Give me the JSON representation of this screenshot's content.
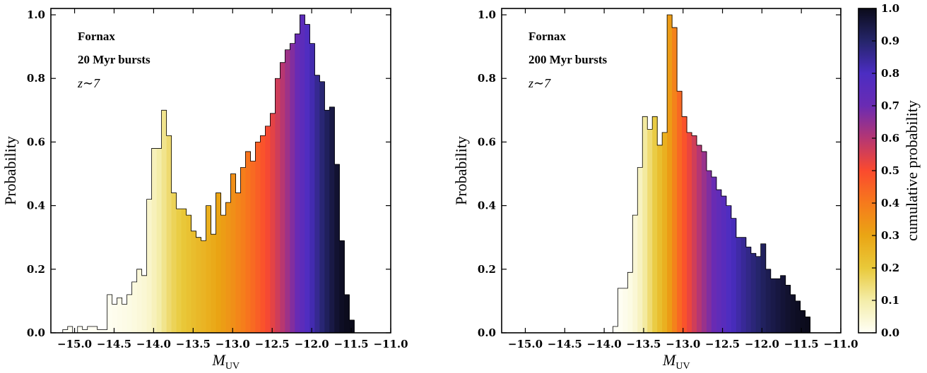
{
  "colormap": {
    "name": "cumulative-probability",
    "stops": [
      {
        "v": 0.0,
        "c": "#fffff6"
      },
      {
        "v": 0.1,
        "c": "#f4eda9"
      },
      {
        "v": 0.2,
        "c": "#e9c93a"
      },
      {
        "v": 0.3,
        "c": "#eaa514"
      },
      {
        "v": 0.4,
        "c": "#f67a1c"
      },
      {
        "v": 0.5,
        "c": "#fb4a2e"
      },
      {
        "v": 0.6,
        "c": "#b53673"
      },
      {
        "v": 0.7,
        "c": "#6a2bb3"
      },
      {
        "v": 0.8,
        "c": "#4b2dc2"
      },
      {
        "v": 0.9,
        "c": "#25256a"
      },
      {
        "v": 1.0,
        "c": "#0b0b1a"
      }
    ]
  },
  "chart_data": [
    {
      "type": "bar",
      "annotations": [
        "Fornax",
        "20 Myr bursts",
        "z∼7"
      ],
      "xlabel": "M",
      "xlabel_sub": "UV",
      "ylabel": "Probability",
      "xlim": [
        -15.3,
        -11.0
      ],
      "ylim": [
        0.0,
        1.02
      ],
      "xticks": [
        -15.0,
        -14.5,
        -14.0,
        -13.5,
        -13.0,
        -12.5,
        -12.0,
        -11.5,
        -11.0
      ],
      "xtick_labels": [
        "−15.0",
        "−14.5",
        "−14.0",
        "−13.5",
        "−13.0",
        "−12.5",
        "−12.0",
        "−11.5",
        "−11.0"
      ],
      "yticks": [
        0.0,
        0.2,
        0.4,
        0.6,
        0.8,
        1.0
      ],
      "ytick_labels": [
        "0.0",
        "0.2",
        "0.4",
        "0.6",
        "0.8",
        "1.0"
      ],
      "bin_start": -15.15,
      "bin_width": 0.0625,
      "values": [
        0.01,
        0.02,
        0.0,
        0.02,
        0.01,
        0.02,
        0.02,
        0.01,
        0.01,
        0.12,
        0.09,
        0.11,
        0.09,
        0.12,
        0.16,
        0.2,
        0.18,
        0.42,
        0.58,
        0.58,
        0.7,
        0.62,
        0.44,
        0.39,
        0.39,
        0.37,
        0.32,
        0.3,
        0.29,
        0.4,
        0.31,
        0.44,
        0.37,
        0.41,
        0.5,
        0.44,
        0.52,
        0.57,
        0.54,
        0.6,
        0.62,
        0.65,
        0.69,
        0.8,
        0.85,
        0.89,
        0.91,
        0.94,
        1.0,
        0.97,
        0.91,
        0.81,
        0.79,
        0.7,
        0.71,
        0.53,
        0.29,
        0.12,
        0.04
      ]
    },
    {
      "type": "bar",
      "annotations": [
        "Fornax",
        "200 Myr bursts",
        "z∼7"
      ],
      "xlabel": "M",
      "xlabel_sub": "UV",
      "ylabel": "Probability",
      "xlim": [
        -15.3,
        -11.0
      ],
      "ylim": [
        0.0,
        1.02
      ],
      "xticks": [
        -15.0,
        -14.5,
        -14.0,
        -13.5,
        -13.0,
        -12.5,
        -12.0,
        -11.5,
        -11.0
      ],
      "xtick_labels": [
        "−15.0",
        "−14.5",
        "−14.0",
        "−13.5",
        "−13.0",
        "−12.5",
        "−12.0",
        "−11.5",
        "−11.0"
      ],
      "yticks": [
        0.0,
        0.2,
        0.4,
        0.6,
        0.8,
        1.0
      ],
      "ytick_labels": [
        "0.0",
        "0.2",
        "0.4",
        "0.6",
        "0.8",
        "1.0"
      ],
      "bin_start": -13.89,
      "bin_width": 0.0625,
      "values": [
        0.02,
        0.14,
        0.14,
        0.19,
        0.37,
        0.52,
        0.68,
        0.64,
        0.68,
        0.59,
        0.63,
        1.0,
        0.96,
        0.76,
        0.68,
        0.63,
        0.62,
        0.59,
        0.57,
        0.51,
        0.49,
        0.45,
        0.43,
        0.4,
        0.36,
        0.3,
        0.3,
        0.27,
        0.25,
        0.24,
        0.28,
        0.2,
        0.17,
        0.17,
        0.18,
        0.15,
        0.12,
        0.1,
        0.07,
        0.05
      ]
    }
  ],
  "colorbar": {
    "label": "cumulative probability",
    "range": [
      0.0,
      1.0
    ],
    "ticks": [
      0.0,
      0.1,
      0.2,
      0.3,
      0.4,
      0.5,
      0.6,
      0.7,
      0.8,
      0.9,
      1.0
    ],
    "tick_labels": [
      "0.0",
      "0.1",
      "0.2",
      "0.3",
      "0.4",
      "0.5",
      "0.6",
      "0.7",
      "0.8",
      "0.9",
      "1.0"
    ]
  }
}
